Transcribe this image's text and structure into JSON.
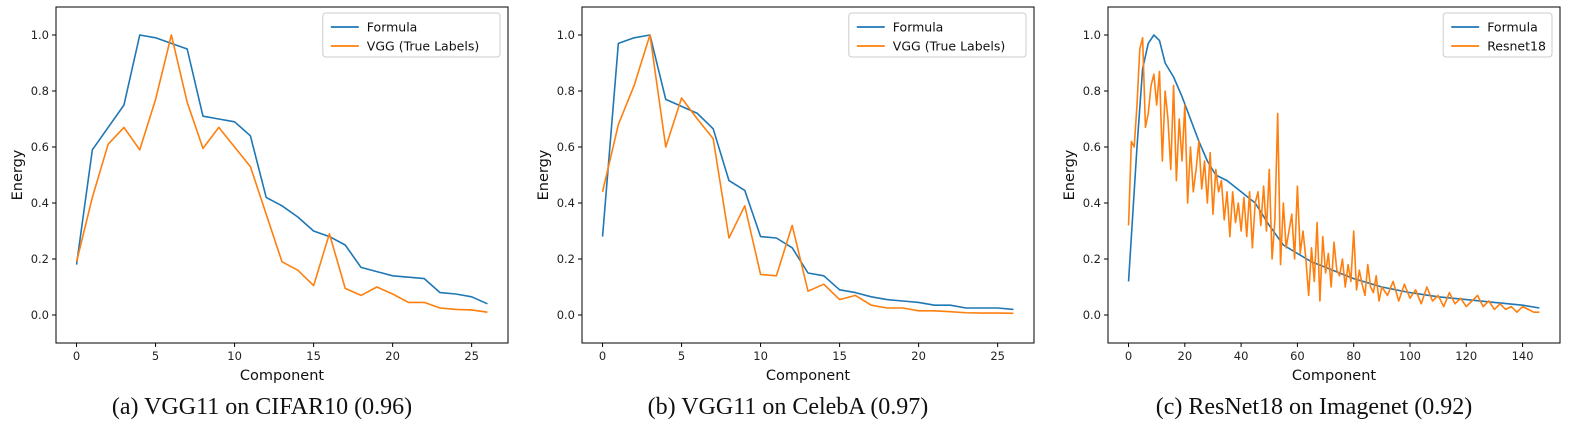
{
  "colors": {
    "formula": "#1f77b4",
    "model": "#ff7f0e"
  },
  "chart_data": [
    {
      "type": "line",
      "caption": "(a) VGG11 on CIFAR10 (0.96)",
      "xlabel": "Component",
      "ylabel": "Energy",
      "xlim": [
        -1.3,
        27.3
      ],
      "ylim": [
        -0.1,
        1.1
      ],
      "xticks": [
        0,
        5,
        10,
        15,
        20,
        25
      ],
      "xtick_labels": [
        "0",
        "5",
        "10",
        "15",
        "20",
        "25"
      ],
      "yticks": [
        0.0,
        0.2,
        0.4,
        0.6,
        0.8,
        1.0
      ],
      "ytick_labels": [
        "0.0",
        "0.2",
        "0.4",
        "0.6",
        "0.8",
        "1.0"
      ],
      "legend_placement": "top-right",
      "series": [
        {
          "name": "Formula",
          "color": "#1f77b4",
          "x": [
            0,
            1,
            2,
            3,
            4,
            5,
            6,
            7,
            8,
            9,
            10,
            11,
            12,
            13,
            14,
            15,
            16,
            17,
            18,
            19,
            20,
            21,
            22,
            23,
            24,
            25,
            26
          ],
          "y": [
            0.18,
            0.59,
            0.67,
            0.75,
            1.0,
            0.99,
            0.97,
            0.95,
            0.71,
            0.7,
            0.69,
            0.64,
            0.42,
            0.39,
            0.35,
            0.3,
            0.28,
            0.25,
            0.17,
            0.155,
            0.14,
            0.135,
            0.13,
            0.08,
            0.075,
            0.065,
            0.04
          ]
        },
        {
          "name": "VGG (True Labels)",
          "color": "#ff7f0e",
          "x": [
            0,
            1,
            2,
            3,
            4,
            5,
            6,
            7,
            8,
            9,
            10,
            11,
            12,
            13,
            14,
            15,
            16,
            17,
            18,
            19,
            20,
            21,
            22,
            23,
            24,
            25,
            26
          ],
          "y": [
            0.19,
            0.42,
            0.61,
            0.67,
            0.59,
            0.77,
            1.0,
            0.76,
            0.595,
            0.67,
            0.6,
            0.53,
            0.36,
            0.19,
            0.16,
            0.105,
            0.29,
            0.095,
            0.07,
            0.1,
            0.075,
            0.045,
            0.045,
            0.025,
            0.02,
            0.018,
            0.01
          ]
        }
      ]
    },
    {
      "type": "line",
      "caption": "(b) VGG11 on CelebA (0.97)",
      "xlabel": "Component",
      "ylabel": "Energy",
      "xlim": [
        -1.3,
        27.3
      ],
      "ylim": [
        -0.1,
        1.1
      ],
      "xticks": [
        0,
        5,
        10,
        15,
        20,
        25
      ],
      "xtick_labels": [
        "0",
        "5",
        "10",
        "15",
        "20",
        "25"
      ],
      "yticks": [
        0.0,
        0.2,
        0.4,
        0.6,
        0.8,
        1.0
      ],
      "ytick_labels": [
        "0.0",
        "0.2",
        "0.4",
        "0.6",
        "0.8",
        "1.0"
      ],
      "legend_placement": "top-right",
      "series": [
        {
          "name": "Formula",
          "color": "#1f77b4",
          "x": [
            0,
            1,
            2,
            3,
            4,
            5,
            6,
            7,
            8,
            9,
            10,
            11,
            12,
            13,
            14,
            15,
            16,
            17,
            18,
            19,
            20,
            21,
            22,
            23,
            24,
            25,
            26
          ],
          "y": [
            0.28,
            0.97,
            0.99,
            1.0,
            0.77,
            0.745,
            0.72,
            0.665,
            0.48,
            0.445,
            0.28,
            0.275,
            0.24,
            0.15,
            0.14,
            0.09,
            0.08,
            0.065,
            0.055,
            0.05,
            0.045,
            0.035,
            0.035,
            0.025,
            0.025,
            0.025,
            0.02
          ]
        },
        {
          "name": "VGG (True Labels)",
          "color": "#ff7f0e",
          "x": [
            0,
            1,
            2,
            3,
            4,
            5,
            6,
            7,
            8,
            9,
            10,
            11,
            12,
            13,
            14,
            15,
            16,
            17,
            18,
            19,
            20,
            21,
            22,
            23,
            24,
            25,
            26
          ],
          "y": [
            0.44,
            0.68,
            0.82,
            1.0,
            0.6,
            0.775,
            0.7,
            0.63,
            0.275,
            0.39,
            0.145,
            0.14,
            0.32,
            0.085,
            0.11,
            0.055,
            0.07,
            0.035,
            0.025,
            0.025,
            0.015,
            0.015,
            0.012,
            0.008,
            0.007,
            0.007,
            0.006
          ]
        }
      ]
    },
    {
      "type": "line",
      "caption": "(c) ResNet18 on Imagenet (0.92)",
      "xlabel": "Component",
      "ylabel": "Energy",
      "xlim": [
        -7.3,
        153.3
      ],
      "ylim": [
        -0.1,
        1.1
      ],
      "xticks": [
        0,
        20,
        40,
        60,
        80,
        100,
        120,
        140
      ],
      "xtick_labels": [
        "0",
        "20",
        "40",
        "60",
        "80",
        "100",
        "120",
        "140"
      ],
      "yticks": [
        0.0,
        0.2,
        0.4,
        0.6,
        0.8,
        1.0
      ],
      "ytick_labels": [
        "0.0",
        "0.2",
        "0.4",
        "0.6",
        "0.8",
        "1.0"
      ],
      "legend_placement": "top-right",
      "series": [
        {
          "name": "Formula",
          "color": "#1f77b4",
          "x": [
            0,
            3,
            5,
            7,
            9,
            11,
            13,
            16,
            19,
            22,
            25,
            28,
            31,
            35,
            40,
            45,
            50,
            55,
            60,
            65,
            70,
            75,
            80,
            85,
            90,
            95,
            100,
            110,
            120,
            130,
            140,
            146
          ],
          "y": [
            0.12,
            0.6,
            0.88,
            0.97,
            1.0,
            0.98,
            0.9,
            0.85,
            0.78,
            0.7,
            0.62,
            0.55,
            0.5,
            0.48,
            0.44,
            0.4,
            0.32,
            0.25,
            0.22,
            0.19,
            0.17,
            0.15,
            0.13,
            0.115,
            0.1,
            0.09,
            0.08,
            0.065,
            0.055,
            0.045,
            0.035,
            0.025
          ]
        },
        {
          "name": "Resnet18",
          "color": "#ff7f0e",
          "x": [
            0,
            1,
            2,
            3,
            4,
            5,
            6,
            7,
            8,
            9,
            10,
            11,
            12,
            13,
            14,
            15,
            16,
            17,
            18,
            19,
            20,
            21,
            22,
            23,
            24,
            25,
            26,
            27,
            28,
            29,
            30,
            31,
            32,
            33,
            34,
            35,
            36,
            37,
            38,
            39,
            40,
            41,
            42,
            43,
            44,
            45,
            46,
            47,
            48,
            49,
            50,
            51,
            52,
            53,
            54,
            55,
            56,
            57,
            58,
            59,
            60,
            61,
            62,
            63,
            64,
            65,
            66,
            67,
            68,
            69,
            70,
            71,
            72,
            73,
            74,
            75,
            76,
            77,
            78,
            79,
            80,
            81,
            82,
            83,
            84,
            85,
            86,
            87,
            88,
            89,
            90,
            92,
            94,
            96,
            98,
            100,
            102,
            104,
            106,
            108,
            110,
            112,
            114,
            116,
            118,
            120,
            122,
            124,
            126,
            128,
            130,
            132,
            134,
            136,
            138,
            140,
            142,
            144,
            146
          ],
          "y": [
            0.32,
            0.62,
            0.6,
            0.75,
            0.95,
            0.99,
            0.67,
            0.72,
            0.82,
            0.86,
            0.75,
            0.87,
            0.55,
            0.8,
            0.7,
            0.52,
            0.82,
            0.48,
            0.7,
            0.55,
            0.75,
            0.4,
            0.6,
            0.44,
            0.52,
            0.62,
            0.45,
            0.55,
            0.4,
            0.58,
            0.36,
            0.52,
            0.44,
            0.48,
            0.34,
            0.44,
            0.28,
            0.44,
            0.33,
            0.4,
            0.3,
            0.42,
            0.28,
            0.44,
            0.24,
            0.4,
            0.44,
            0.32,
            0.46,
            0.3,
            0.52,
            0.2,
            0.34,
            0.72,
            0.18,
            0.4,
            0.24,
            0.3,
            0.36,
            0.2,
            0.46,
            0.22,
            0.3,
            0.2,
            0.07,
            0.24,
            0.12,
            0.33,
            0.05,
            0.28,
            0.15,
            0.22,
            0.1,
            0.26,
            0.16,
            0.14,
            0.2,
            0.1,
            0.18,
            0.12,
            0.3,
            0.09,
            0.16,
            0.11,
            0.07,
            0.18,
            0.1,
            0.08,
            0.14,
            0.05,
            0.1,
            0.07,
            0.12,
            0.05,
            0.11,
            0.06,
            0.09,
            0.04,
            0.1,
            0.05,
            0.07,
            0.03,
            0.08,
            0.04,
            0.06,
            0.03,
            0.05,
            0.07,
            0.03,
            0.05,
            0.02,
            0.04,
            0.02,
            0.03,
            0.01,
            0.03,
            0.02,
            0.01,
            0.01
          ]
        }
      ]
    }
  ]
}
